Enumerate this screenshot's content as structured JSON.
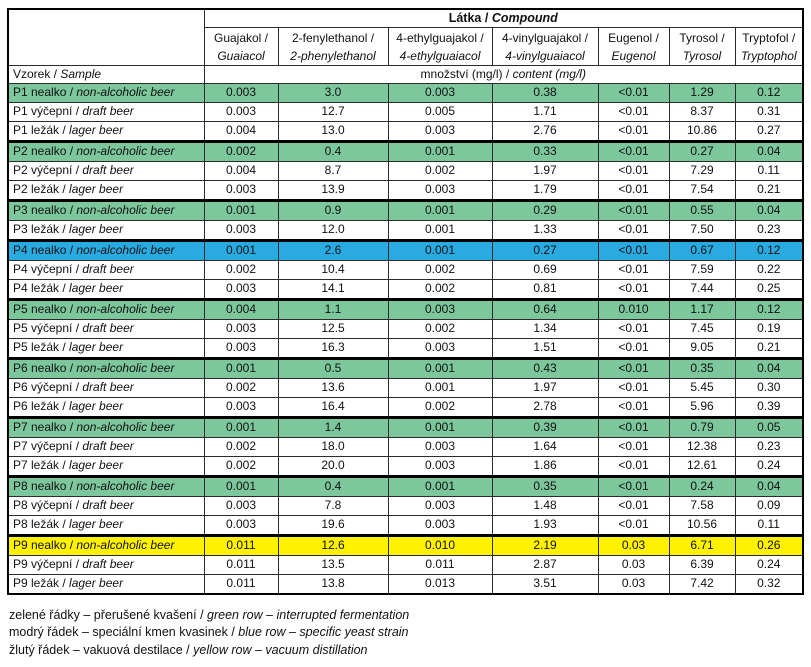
{
  "table": {
    "compound_header_cs": "Látka /",
    "compound_header_en": "Compound",
    "sample_header_cs": "Vzorek /",
    "sample_header_en": "Sample",
    "unit_header_cs": "množství (mg/l) /",
    "unit_header_en": "content (mg/l)",
    "columns": [
      {
        "cs": "Guajakol /",
        "en": "Guaiacol"
      },
      {
        "cs": "2-fenylethanol /",
        "en": "2-phenylethanol"
      },
      {
        "cs": "4-ethylguajakol /",
        "en": "4-ethylguaiacol"
      },
      {
        "cs": "4-vinylguajakol /",
        "en": "4-vinylguaiacol"
      },
      {
        "cs": "Eugenol /",
        "en": "Eugenol"
      },
      {
        "cs": "Tyrosol /",
        "en": "Tyrosol"
      },
      {
        "cs": "Tryptofol /",
        "en": "Tryptophol"
      }
    ],
    "rows": [
      {
        "sample_cs": "P1 nealko /",
        "sample_en": "non-alcoholic beer",
        "highlight": "green",
        "group_start": false,
        "values": [
          "0.003",
          "3.0",
          "0.003",
          "0.38",
          "<0.01",
          "1.29",
          "0.12"
        ]
      },
      {
        "sample_cs": "P1 výčepní /",
        "sample_en": "draft beer",
        "highlight": null,
        "group_start": false,
        "values": [
          "0.003",
          "12.7",
          "0.005",
          "1.71",
          "<0.01",
          "8.37",
          "0.31"
        ]
      },
      {
        "sample_cs": "P1 ležák /",
        "sample_en": "lager beer",
        "highlight": null,
        "group_start": false,
        "values": [
          "0.004",
          "13.0",
          "0.003",
          "2.76",
          "<0.01",
          "10.86",
          "0.27"
        ]
      },
      {
        "sample_cs": "P2 nealko /",
        "sample_en": "non-alcoholic beer",
        "highlight": "green",
        "group_start": true,
        "values": [
          "0.002",
          "0.4",
          "0.001",
          "0.33",
          "<0.01",
          "0.27",
          "0.04"
        ]
      },
      {
        "sample_cs": "P2 výčepní /",
        "sample_en": "draft beer",
        "highlight": null,
        "group_start": false,
        "values": [
          "0.004",
          "8.7",
          "0.002",
          "1.97",
          "<0.01",
          "7.29",
          "0.11"
        ]
      },
      {
        "sample_cs": "P2 ležák /",
        "sample_en": "lager beer",
        "highlight": null,
        "group_start": false,
        "values": [
          "0.003",
          "13.9",
          "0.003",
          "1.79",
          "<0.01",
          "7.54",
          "0.21"
        ]
      },
      {
        "sample_cs": "P3 nealko /",
        "sample_en": "non-alcoholic beer",
        "highlight": "green",
        "group_start": true,
        "values": [
          "0.001",
          "0.9",
          "0.001",
          "0.29",
          "<0.01",
          "0.55",
          "0.04"
        ]
      },
      {
        "sample_cs": "P3 ležák /",
        "sample_en": "lager beer",
        "highlight": null,
        "group_start": false,
        "values": [
          "0.003",
          "12.0",
          "0.001",
          "1.33",
          "<0.01",
          "7.50",
          "0.23"
        ]
      },
      {
        "sample_cs": "P4 nealko /",
        "sample_en": "non-alcoholic beer",
        "highlight": "blue",
        "group_start": true,
        "values": [
          "0.001",
          "2.6",
          "0.001",
          "0.27",
          "<0.01",
          "0.67",
          "0.12"
        ]
      },
      {
        "sample_cs": "P4 výčepní /",
        "sample_en": "draft beer",
        "highlight": null,
        "group_start": false,
        "values": [
          "0.002",
          "10.4",
          "0.002",
          "0.69",
          "<0.01",
          "7.59",
          "0.22"
        ]
      },
      {
        "sample_cs": "P4 ležák /",
        "sample_en": "lager beer",
        "highlight": null,
        "group_start": false,
        "values": [
          "0.003",
          "14.1",
          "0.002",
          "0.81",
          "<0.01",
          "7.44",
          "0.25"
        ]
      },
      {
        "sample_cs": "P5 nealko /",
        "sample_en": "non-alcoholic beer",
        "highlight": "green",
        "group_start": true,
        "values": [
          "0.004",
          "1.1",
          "0.003",
          "0.64",
          "0.010",
          "1.17",
          "0.12"
        ]
      },
      {
        "sample_cs": "P5 výčepní /",
        "sample_en": "draft beer",
        "highlight": null,
        "group_start": false,
        "values": [
          "0.003",
          "12.5",
          "0.002",
          "1.34",
          "<0.01",
          "7.45",
          "0.19"
        ]
      },
      {
        "sample_cs": "P5 ležák /",
        "sample_en": "lager beer",
        "highlight": null,
        "group_start": false,
        "values": [
          "0.003",
          "16.3",
          "0.003",
          "1.51",
          "<0.01",
          "9.05",
          "0.21"
        ]
      },
      {
        "sample_cs": "P6 nealko /",
        "sample_en": "non-alcoholic beer",
        "highlight": "green",
        "group_start": true,
        "values": [
          "0.001",
          "0.5",
          "0.001",
          "0.43",
          "<0.01",
          "0.35",
          "0.04"
        ]
      },
      {
        "sample_cs": "P6 výčepní /",
        "sample_en": "draft beer",
        "highlight": null,
        "group_start": false,
        "values": [
          "0.002",
          "13.6",
          "0.001",
          "1.97",
          "<0.01",
          "5.45",
          "0.30"
        ]
      },
      {
        "sample_cs": "P6 ležák /",
        "sample_en": "lager beer",
        "highlight": null,
        "group_start": false,
        "values": [
          "0.003",
          "16.4",
          "0.002",
          "2.78",
          "<0.01",
          "5.96",
          "0.39"
        ]
      },
      {
        "sample_cs": "P7 nealko /",
        "sample_en": "non-alcoholic beer",
        "highlight": "green",
        "group_start": true,
        "values": [
          "0.001",
          "1.4",
          "0.001",
          "0.39",
          "<0.01",
          "0.79",
          "0.05"
        ]
      },
      {
        "sample_cs": "P7 výčepní /",
        "sample_en": "draft beer",
        "highlight": null,
        "group_start": false,
        "values": [
          "0.002",
          "18.0",
          "0.003",
          "1.64",
          "<0.01",
          "12.38",
          "0.23"
        ]
      },
      {
        "sample_cs": "P7 ležák /",
        "sample_en": "lager beer",
        "highlight": null,
        "group_start": false,
        "values": [
          "0.002",
          "20.0",
          "0.003",
          "1.86",
          "<0.01",
          "12.61",
          "0.24"
        ]
      },
      {
        "sample_cs": "P8 nealko /",
        "sample_en": "non-alcoholic beer",
        "highlight": "green",
        "group_start": true,
        "values": [
          "0.001",
          "0.4",
          "0.001",
          "0.35",
          "<0.01",
          "0.24",
          "0.04"
        ]
      },
      {
        "sample_cs": "P8 výčepní /",
        "sample_en": "draft beer",
        "highlight": null,
        "group_start": false,
        "values": [
          "0.003",
          "7.8",
          "0.003",
          "1.48",
          "<0.01",
          "7.58",
          "0.09"
        ]
      },
      {
        "sample_cs": "P8 ležák /",
        "sample_en": "lager beer",
        "highlight": null,
        "group_start": false,
        "values": [
          "0.003",
          "19.6",
          "0.003",
          "1.93",
          "<0.01",
          "10.56",
          "0.11"
        ]
      },
      {
        "sample_cs": "P9 nealko /",
        "sample_en": "non-alcoholic beer",
        "highlight": "yellow",
        "group_start": true,
        "values": [
          "0.011",
          "12.6",
          "0.010",
          "2.19",
          "0.03",
          "6.71",
          "0.26"
        ]
      },
      {
        "sample_cs": "P9 výčepní /",
        "sample_en": "draft beer",
        "highlight": null,
        "group_start": false,
        "values": [
          "0.011",
          "13.5",
          "0.011",
          "2.87",
          "0.03",
          "6.39",
          "0.24"
        ]
      },
      {
        "sample_cs": "P9 ležák /",
        "sample_en": "lager beer",
        "highlight": null,
        "group_start": false,
        "values": [
          "0.011",
          "13.8",
          "0.013",
          "3.51",
          "0.03",
          "7.42",
          "0.32"
        ]
      }
    ]
  },
  "legend": [
    {
      "cs": "zelené řádky – přerušené kvašení /",
      "en": "green row – interrupted fermentation"
    },
    {
      "cs": "modrý řádek – speciální kmen kvasinek /",
      "en": "blue row – specific yeast strain"
    },
    {
      "cs": "žlutý řádek – vakuová destilace /",
      "en": "yellow row – vacuum distillation"
    }
  ],
  "colors": {
    "green": "#7cc79c",
    "blue": "#29abe2",
    "yellow": "#fff200"
  }
}
